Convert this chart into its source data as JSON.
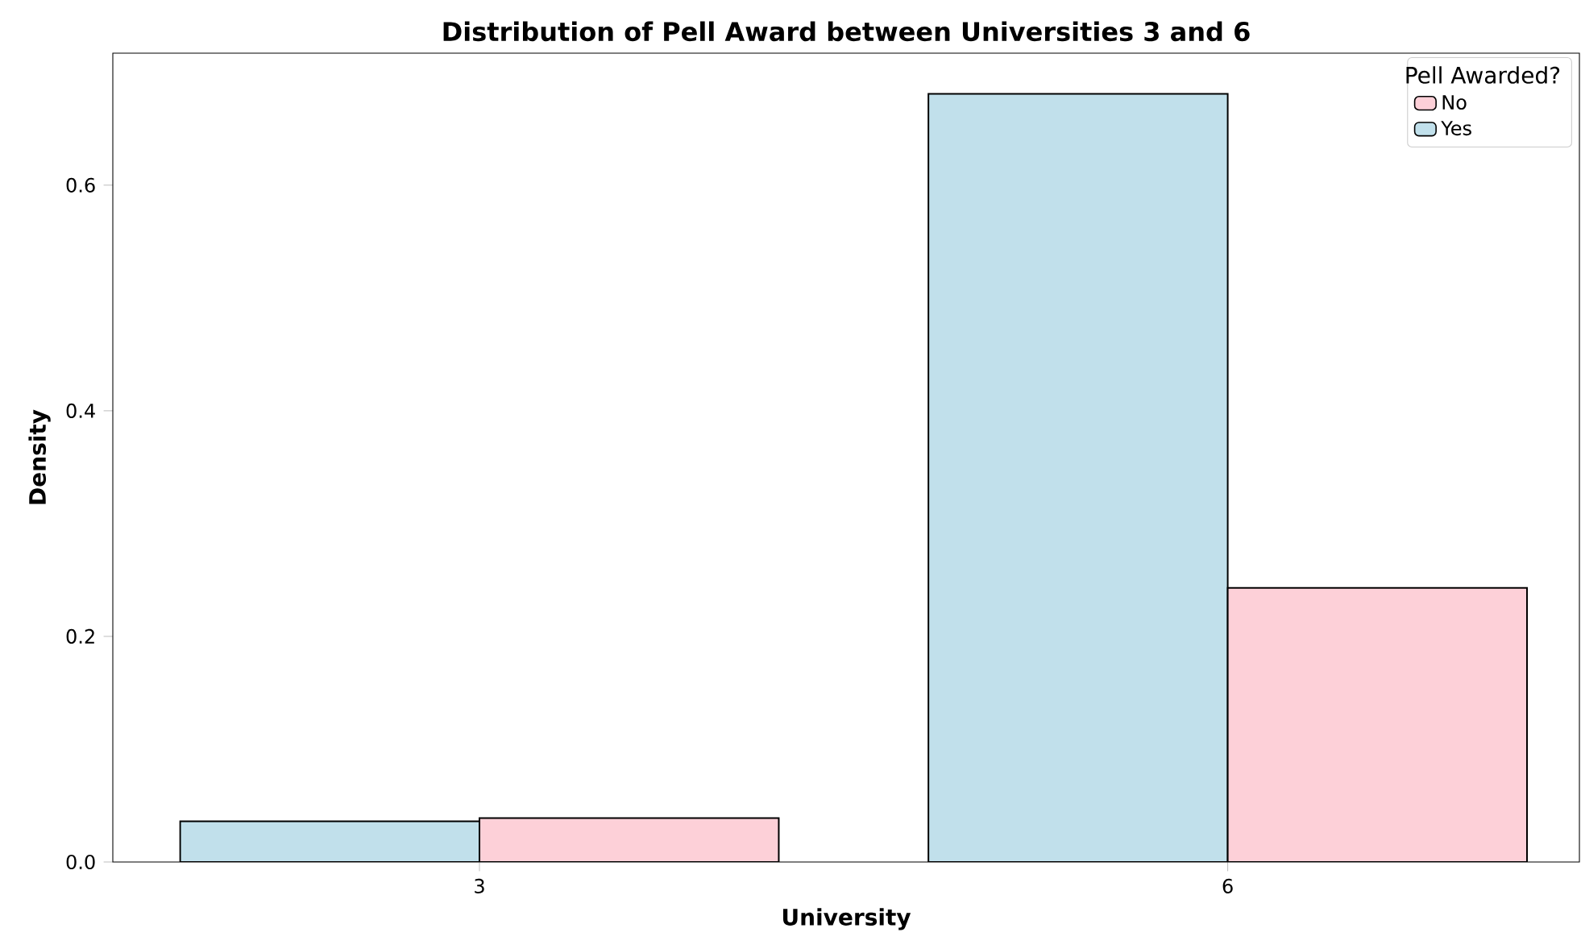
{
  "chart_data": {
    "type": "bar",
    "title": "Distribution of Pell Award between Universities 3 and 6",
    "xlabel": "University",
    "ylabel": "Density",
    "legend_title": "Pell Awarded?",
    "legend": "top right",
    "categories": [
      "3",
      "6"
    ],
    "series": [
      {
        "name": "Yes",
        "color": "#c1e0eb",
        "values": [
          0.036,
          0.681
        ]
      },
      {
        "name": "No",
        "color": "#fdd0d8",
        "values": [
          0.039,
          0.243
        ]
      }
    ],
    "ylim": [
      0,
      0.717
    ],
    "yticks": [
      {
        "value": 0,
        "label": "0.0"
      },
      0.2,
      0.4,
      0.6
    ]
  }
}
